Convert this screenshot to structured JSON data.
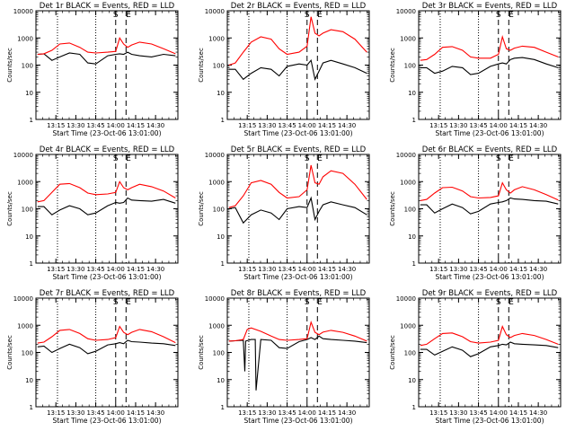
{
  "chart_data": [
    {
      "type": "line",
      "title": "Det 1r BLACK = Events, RED = LLD",
      "xlabel": "Start Time (23-Oct-06 13:01:00)",
      "ylabel": "Counts/sec",
      "x_ticks": [
        "13:15",
        "13:30",
        "13:45",
        "14:00",
        "14:15",
        "14:30"
      ],
      "y_ticks": [
        "1",
        "10",
        "100",
        "1000",
        "10000"
      ],
      "ylim": [
        1,
        10000
      ],
      "yscale": "log",
      "markers": [
        {
          "label": "S"
        },
        {
          "label": "E"
        }
      ],
      "series": [
        {
          "color": "#000000",
          "x": [
            13.02,
            13.1,
            13.2,
            13.3,
            13.42,
            13.55,
            13.65,
            13.75,
            13.9,
            14.0,
            14.05,
            14.1,
            14.15,
            14.2,
            14.3,
            14.45,
            14.6,
            14.75
          ],
          "values": [
            250,
            260,
            150,
            200,
            280,
            250,
            120,
            110,
            220,
            250,
            260,
            250,
            300,
            250,
            220,
            200,
            250,
            220
          ]
        },
        {
          "color": "#ff0000",
          "x": [
            13.02,
            13.1,
            13.2,
            13.3,
            13.42,
            13.55,
            13.65,
            13.75,
            13.9,
            14.0,
            14.05,
            14.1,
            14.15,
            14.2,
            14.3,
            14.45,
            14.6,
            14.75
          ],
          "values": [
            250,
            260,
            350,
            600,
            650,
            450,
            300,
            280,
            300,
            320,
            1000,
            600,
            450,
            550,
            700,
            600,
            400,
            260
          ]
        }
      ]
    },
    {
      "type": "line",
      "title": "Det 2r BLACK = Events, RED = LLD",
      "xlabel": "Start Time (23-Oct-06 13:01:00)",
      "ylabel": "Counts/sec",
      "x_ticks": [
        "13:15",
        "13:30",
        "13:45",
        "14:00",
        "14:15",
        "14:30"
      ],
      "y_ticks": [
        "1",
        "10",
        "100",
        "1000",
        "10000"
      ],
      "ylim": [
        1,
        10000
      ],
      "yscale": "log",
      "markers": [
        {
          "label": "S"
        },
        {
          "label": "E"
        }
      ],
      "series": [
        {
          "color": "#000000",
          "x": [
            13.02,
            13.1,
            13.2,
            13.3,
            13.42,
            13.55,
            13.65,
            13.75,
            13.9,
            14.0,
            14.05,
            14.1,
            14.15,
            14.2,
            14.3,
            14.45,
            14.6,
            14.75
          ],
          "values": [
            70,
            70,
            30,
            50,
            80,
            70,
            40,
            90,
            110,
            100,
            150,
            30,
            60,
            120,
            150,
            110,
            80,
            50
          ]
        },
        {
          "color": "#ff0000",
          "x": [
            13.02,
            13.1,
            13.2,
            13.3,
            13.42,
            13.55,
            13.65,
            13.75,
            13.9,
            14.0,
            14.05,
            14.1,
            14.15,
            14.2,
            14.3,
            14.45,
            14.6,
            14.75
          ],
          "values": [
            100,
            120,
            300,
            700,
            1100,
            900,
            400,
            250,
            300,
            500,
            6000,
            1500,
            1200,
            1500,
            2000,
            1700,
            900,
            300
          ]
        }
      ]
    },
    {
      "type": "line",
      "title": "Det 3r BLACK = Events, RED = LLD",
      "xlabel": "Start Time (23-Oct-06 13:01:00)",
      "ylabel": "Counts/sec",
      "x_ticks": [
        "13:15",
        "13:30",
        "13:45",
        "14:00",
        "14:15",
        "14:30"
      ],
      "y_ticks": [
        "1",
        "10",
        "100",
        "1000",
        "10000"
      ],
      "ylim": [
        1,
        10000
      ],
      "yscale": "log",
      "markers": [
        {
          "label": "S"
        },
        {
          "label": "E"
        }
      ],
      "series": [
        {
          "color": "#000000",
          "x": [
            13.02,
            13.1,
            13.2,
            13.3,
            13.42,
            13.55,
            13.65,
            13.75,
            13.9,
            14.0,
            14.05,
            14.1,
            14.15,
            14.2,
            14.3,
            14.45,
            14.6,
            14.75
          ],
          "values": [
            80,
            80,
            50,
            60,
            90,
            80,
            45,
            50,
            90,
            110,
            120,
            110,
            160,
            180,
            190,
            160,
            110,
            80
          ]
        },
        {
          "color": "#ff0000",
          "x": [
            13.02,
            13.1,
            13.2,
            13.3,
            13.42,
            13.55,
            13.65,
            13.75,
            13.9,
            14.0,
            14.05,
            14.1,
            14.15,
            14.2,
            14.3,
            14.45,
            14.6,
            14.75
          ],
          "values": [
            150,
            160,
            250,
            450,
            480,
            350,
            200,
            180,
            180,
            250,
            1100,
            400,
            350,
            420,
            500,
            450,
            300,
            200
          ]
        }
      ]
    },
    {
      "type": "line",
      "title": "Det 4r BLACK = Events, RED = LLD",
      "xlabel": "Start Time (23-Oct-06 13:01:00)",
      "ylabel": "Counts/sec",
      "x_ticks": [
        "13:15",
        "13:30",
        "13:45",
        "14:00",
        "14:15",
        "14:30"
      ],
      "y_ticks": [
        "1",
        "10",
        "100",
        "1000",
        "10000"
      ],
      "ylim": [
        1,
        10000
      ],
      "yscale": "log",
      "markers": [
        {
          "label": "S"
        },
        {
          "label": "E"
        }
      ],
      "series": [
        {
          "color": "#000000",
          "x": [
            13.02,
            13.1,
            13.2,
            13.3,
            13.42,
            13.55,
            13.65,
            13.75,
            13.9,
            14.0,
            14.05,
            14.1,
            14.15,
            14.2,
            14.3,
            14.45,
            14.6,
            14.75
          ],
          "values": [
            120,
            120,
            60,
            90,
            130,
            100,
            60,
            70,
            130,
            170,
            160,
            170,
            250,
            210,
            200,
            190,
            220,
            160
          ]
        },
        {
          "color": "#ff0000",
          "x": [
            13.02,
            13.1,
            13.2,
            13.3,
            13.42,
            13.55,
            13.65,
            13.75,
            13.9,
            14.0,
            14.05,
            14.1,
            14.15,
            14.2,
            14.3,
            14.45,
            14.6,
            14.75
          ],
          "values": [
            180,
            200,
            400,
            800,
            850,
            600,
            380,
            330,
            350,
            400,
            1000,
            600,
            500,
            600,
            800,
            650,
            450,
            250
          ]
        }
      ]
    },
    {
      "type": "line",
      "title": "Det 5r BLACK = Events, RED = LLD",
      "xlabel": "Start Time (23-Oct-06 13:01:00)",
      "ylabel": "Counts/sec",
      "x_ticks": [
        "13:15",
        "13:30",
        "13:45",
        "14:00",
        "14:15",
        "14:30"
      ],
      "y_ticks": [
        "1",
        "10",
        "100",
        "1000",
        "10000"
      ],
      "ylim": [
        1,
        10000
      ],
      "yscale": "log",
      "markers": [
        {
          "label": "S"
        },
        {
          "label": "E"
        }
      ],
      "series": [
        {
          "color": "#000000",
          "x": [
            13.02,
            13.1,
            13.2,
            13.3,
            13.42,
            13.55,
            13.65,
            13.75,
            13.9,
            14.0,
            14.05,
            14.1,
            14.15,
            14.2,
            14.3,
            14.45,
            14.6,
            14.75
          ],
          "values": [
            100,
            110,
            30,
            60,
            90,
            70,
            40,
            100,
            120,
            110,
            250,
            40,
            80,
            140,
            180,
            140,
            110,
            60
          ]
        },
        {
          "color": "#ff0000",
          "x": [
            13.02,
            13.1,
            13.2,
            13.3,
            13.42,
            13.55,
            13.65,
            13.75,
            13.9,
            14.0,
            14.05,
            14.1,
            14.15,
            14.2,
            14.3,
            14.45,
            14.6,
            14.75
          ],
          "values": [
            110,
            130,
            300,
            900,
            1100,
            800,
            400,
            250,
            280,
            500,
            4000,
            900,
            800,
            1500,
            2500,
            2000,
            800,
            220
          ]
        }
      ]
    },
    {
      "type": "line",
      "title": "Det 6r BLACK = Events, RED = LLD",
      "xlabel": "Start Time (23-Oct-06 13:01:00)",
      "ylabel": "Counts/sec",
      "x_ticks": [
        "13:15",
        "13:30",
        "13:45",
        "14:00",
        "14:15",
        "14:30"
      ],
      "y_ticks": [
        "1",
        "10",
        "100",
        "1000",
        "10000"
      ],
      "ylim": [
        1,
        10000
      ],
      "yscale": "log",
      "markers": [
        {
          "label": "S"
        },
        {
          "label": "E"
        }
      ],
      "series": [
        {
          "color": "#000000",
          "x": [
            13.02,
            13.1,
            13.2,
            13.3,
            13.42,
            13.55,
            13.65,
            13.75,
            13.9,
            14.0,
            14.05,
            14.1,
            14.15,
            14.2,
            14.3,
            14.45,
            14.6,
            14.75
          ],
          "values": [
            140,
            140,
            70,
            100,
            150,
            110,
            65,
            80,
            150,
            170,
            180,
            200,
            250,
            230,
            220,
            200,
            190,
            150
          ]
        },
        {
          "color": "#ff0000",
          "x": [
            13.02,
            13.1,
            13.2,
            13.3,
            13.42,
            13.55,
            13.65,
            13.75,
            13.9,
            14.0,
            14.05,
            14.1,
            14.15,
            14.2,
            14.3,
            14.45,
            14.6,
            14.75
          ],
          "values": [
            200,
            220,
            380,
            600,
            620,
            450,
            280,
            250,
            260,
            300,
            900,
            500,
            380,
            500,
            650,
            500,
            330,
            210
          ]
        }
      ]
    },
    {
      "type": "line",
      "title": "Det 7r BLACK = Events, RED = LLD",
      "xlabel": "Start Time (23-Oct-06 13:01:00)",
      "ylabel": "Counts/sec",
      "x_ticks": [
        "13:15",
        "13:30",
        "13:45",
        "14:00",
        "14:15",
        "14:30"
      ],
      "y_ticks": [
        "1",
        "10",
        "100",
        "1000",
        "10000"
      ],
      "ylim": [
        1,
        10000
      ],
      "yscale": "log",
      "markers": [
        {
          "label": "S"
        },
        {
          "label": "E"
        }
      ],
      "series": [
        {
          "color": "#000000",
          "x": [
            13.02,
            13.1,
            13.2,
            13.3,
            13.42,
            13.55,
            13.65,
            13.75,
            13.9,
            14.0,
            14.05,
            14.1,
            14.15,
            14.2,
            14.3,
            14.45,
            14.6,
            14.75
          ],
          "values": [
            160,
            170,
            100,
            140,
            200,
            150,
            90,
            110,
            190,
            210,
            230,
            210,
            280,
            250,
            240,
            220,
            210,
            180
          ]
        },
        {
          "color": "#ff0000",
          "x": [
            13.02,
            13.1,
            13.2,
            13.3,
            13.42,
            13.55,
            13.65,
            13.75,
            13.9,
            14.0,
            14.05,
            14.1,
            14.15,
            14.2,
            14.3,
            14.45,
            14.6,
            14.75
          ],
          "values": [
            220,
            240,
            380,
            650,
            700,
            500,
            320,
            280,
            300,
            350,
            900,
            550,
            450,
            550,
            700,
            580,
            380,
            230
          ]
        }
      ]
    },
    {
      "type": "line",
      "title": "Det 8r BLACK = Events, RED = LLD",
      "xlabel": "Start Time (23-Oct-06 13:01:00)",
      "ylabel": "Counts/sec",
      "x_ticks": [
        "13:15",
        "13:30",
        "13:45",
        "14:00",
        "14:15",
        "14:30"
      ],
      "y_ticks": [
        "1",
        "10",
        "100",
        "1000",
        "10000"
      ],
      "ylim": [
        1,
        10000
      ],
      "yscale": "log",
      "markers": [
        {
          "label": "S"
        },
        {
          "label": "E"
        }
      ],
      "series": [
        {
          "color": "#000000",
          "x": [
            13.02,
            13.1,
            13.2,
            13.22,
            13.23,
            13.3,
            13.35,
            13.36,
            13.42,
            13.55,
            13.65,
            13.75,
            13.9,
            14.0,
            14.05,
            14.1,
            14.15,
            14.2,
            14.3,
            14.45,
            14.6,
            14.75
          ],
          "values": [
            260,
            270,
            280,
            20,
            260,
            300,
            300,
            4,
            300,
            280,
            150,
            140,
            250,
            300,
            350,
            300,
            400,
            320,
            300,
            280,
            260,
            230
          ]
        },
        {
          "color": "#ff0000",
          "x": [
            13.02,
            13.1,
            13.2,
            13.25,
            13.3,
            13.42,
            13.55,
            13.65,
            13.75,
            13.9,
            14.0,
            14.05,
            14.1,
            14.15,
            14.2,
            14.3,
            14.45,
            14.6,
            14.75
          ],
          "values": [
            260,
            270,
            300,
            700,
            800,
            600,
            400,
            300,
            280,
            300,
            320,
            1300,
            550,
            450,
            560,
            650,
            550,
            400,
            260
          ]
        }
      ]
    },
    {
      "type": "line",
      "title": "Det 9r BLACK = Events, RED = LLD",
      "xlabel": "Start Time (23-Oct-06 13:01:00)",
      "ylabel": "Counts/sec",
      "x_ticks": [
        "13:15",
        "13:30",
        "13:45",
        "14:00",
        "14:15",
        "14:30"
      ],
      "y_ticks": [
        "1",
        "10",
        "100",
        "1000",
        "10000"
      ],
      "ylim": [
        1,
        10000
      ],
      "yscale": "log",
      "markers": [
        {
          "label": "S"
        },
        {
          "label": "E"
        }
      ],
      "series": [
        {
          "color": "#000000",
          "x": [
            13.02,
            13.1,
            13.2,
            13.3,
            13.42,
            13.55,
            13.65,
            13.75,
            13.9,
            14.0,
            14.05,
            14.1,
            14.15,
            14.2,
            14.3,
            14.45,
            14.6,
            14.75
          ],
          "values": [
            130,
            130,
            80,
            110,
            160,
            120,
            70,
            90,
            160,
            180,
            200,
            190,
            240,
            210,
            200,
            190,
            180,
            150
          ]
        },
        {
          "color": "#ff0000",
          "x": [
            13.02,
            13.1,
            13.2,
            13.3,
            13.42,
            13.55,
            13.65,
            13.75,
            13.9,
            14.0,
            14.05,
            14.1,
            14.15,
            14.2,
            14.3,
            14.45,
            14.6,
            14.75
          ],
          "values": [
            180,
            200,
            320,
            500,
            520,
            380,
            250,
            220,
            240,
            280,
            900,
            450,
            350,
            420,
            500,
            420,
            300,
            200
          ]
        }
      ]
    }
  ]
}
